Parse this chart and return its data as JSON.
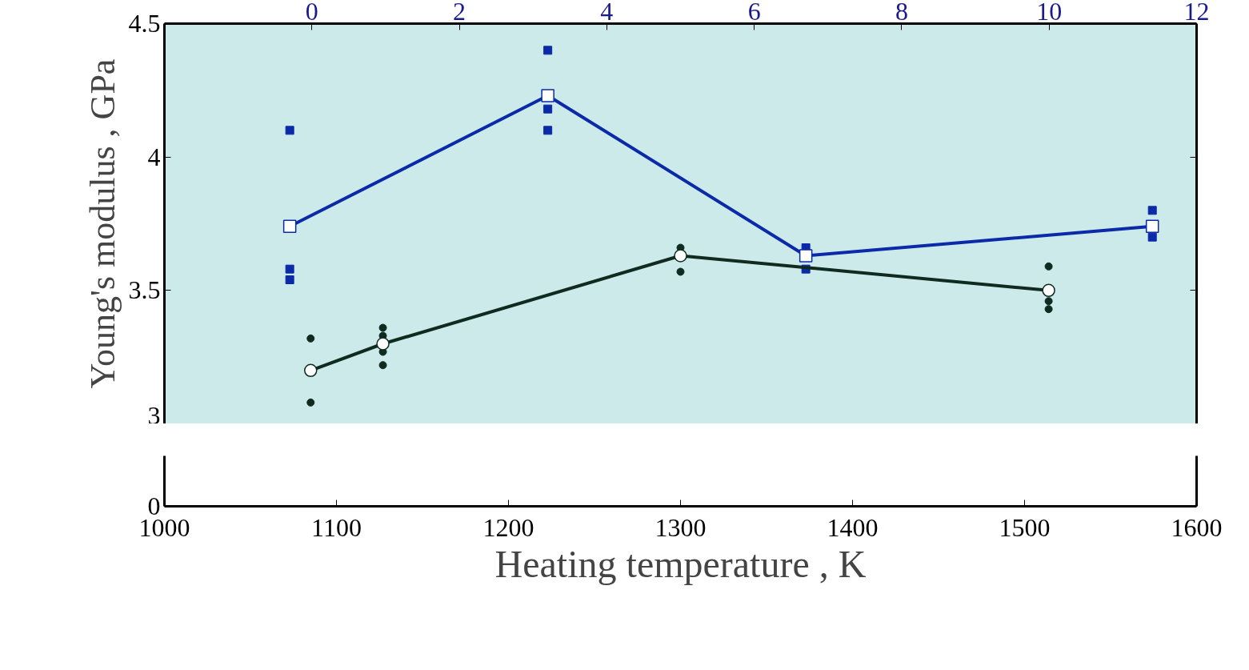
{
  "chart_data": {
    "type": "line",
    "ylabel": "Young's modulus , GPa",
    "xlabel": "Heating temperature , K",
    "xlim": [
      1000,
      1600
    ],
    "xticks": [
      1000,
      1100,
      1200,
      1300,
      1400,
      1500,
      1600
    ],
    "x2lim": [
      -2,
      12
    ],
    "x2ticks": [
      0,
      2,
      4,
      6,
      8,
      10,
      12
    ],
    "ylim": [
      3,
      4.5
    ],
    "yticks": [
      3,
      3.5,
      4,
      4.5
    ],
    "annotations": [
      "0"
    ],
    "series": [
      {
        "type": "scatter",
        "axis": "x2",
        "marker": "square",
        "color": "#0a2aa8",
        "x": [
          -0.3,
          -0.3,
          -0.3,
          3.2,
          3.2,
          3.2,
          6.7,
          6.7,
          11.4,
          11.4
        ],
        "values": [
          4.1,
          3.58,
          3.54,
          4.4,
          4.18,
          4.1,
          3.66,
          3.58,
          3.8,
          3.7
        ]
      },
      {
        "axis": "x2",
        "marker": "square",
        "color": "#0a2aa8",
        "x": [
          -0.3,
          3.2,
          6.7,
          11.4
        ],
        "values": [
          3.74,
          4.23,
          3.63,
          3.74
        ]
      },
      {
        "type": "scatter",
        "marker": "circle",
        "color": "#0f2a1e",
        "x": [
          1085,
          1085,
          1127,
          1127,
          1127,
          1127,
          1300,
          1300,
          1514,
          1514,
          1514
        ],
        "values": [
          3.32,
          3.08,
          3.36,
          3.33,
          3.27,
          3.22,
          3.66,
          3.57,
          3.59,
          3.46,
          3.43
        ]
      },
      {
        "marker": "circle",
        "color": "#0f2a1e",
        "x": [
          1085,
          1127,
          1300,
          1514
        ],
        "values": [
          3.2,
          3.3,
          3.63,
          3.5
        ]
      }
    ]
  }
}
